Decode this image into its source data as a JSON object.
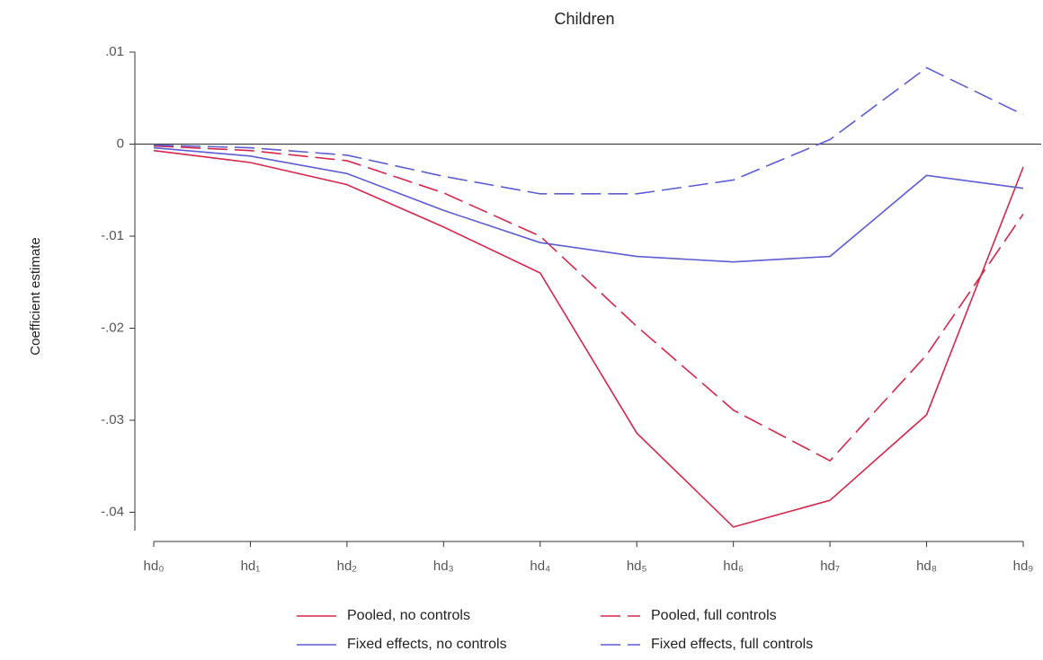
{
  "chart_data": {
    "type": "line",
    "title": "Children",
    "y_label": "Coefficient estimate",
    "categories": [
      "hd₀",
      "hd₁",
      "hd₂",
      "hd₃",
      "hd₄",
      "hd₅",
      "hd₆",
      "hd₇",
      "hd₈",
      "hd₉"
    ],
    "series": [
      {
        "name": "Pooled, no controls",
        "color": "#d7264a",
        "dash": false,
        "values": [
          -0.0007,
          -0.002,
          -0.0044,
          -0.009,
          -0.014,
          -0.0314,
          -0.0416,
          -0.0387,
          -0.0294,
          -0.0025
        ]
      },
      {
        "name": "Pooled, full controls",
        "color": "#d7264a",
        "dash": true,
        "values": [
          -0.0002,
          -0.0007,
          -0.0018,
          -0.0053,
          -0.01,
          -0.0198,
          -0.0289,
          -0.0344,
          -0.0229,
          -0.0076
        ]
      },
      {
        "name": "Fixed effects, no controls",
        "color": "#5c5cd4",
        "dash": false,
        "values": [
          -0.0004,
          -0.0013,
          -0.0032,
          -0.0072,
          -0.0107,
          -0.0122,
          -0.0128,
          -0.0122,
          -0.0034,
          -0.0048
        ]
      },
      {
        "name": "Fixed effects, full controls",
        "color": "#5c5cd4",
        "dash": true,
        "values": [
          -0.0001,
          -0.0004,
          -0.0012,
          -0.0035,
          -0.0054,
          -0.0054,
          -0.0039,
          0.0005,
          0.0083,
          0.0032
        ]
      }
    ],
    "ylim": [
      -0.042,
      0.01
    ],
    "yticks": [
      {
        "value": 0.01,
        "label": ".01"
      },
      0,
      {
        "value": -0.01,
        "label": "-.01"
      },
      {
        "value": -0.02,
        "label": "-.02"
      },
      {
        "value": -0.03,
        "label": "-.03"
      },
      {
        "value": -0.04,
        "label": "-.04"
      }
    ]
  }
}
